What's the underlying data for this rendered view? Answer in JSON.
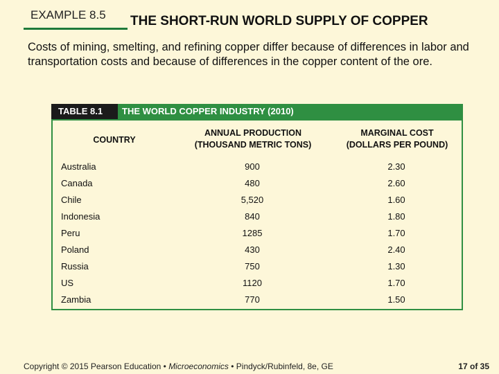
{
  "header": {
    "example_label": "EXAMPLE 8.5",
    "title": "THE SHORT-RUN WORLD SUPPLY OF COPPER"
  },
  "intro_text": "Costs of mining, smelting, and refining copper differ because of differences in labor and transportation costs and because of differences in the copper content of the ore.",
  "table": {
    "number": "TABLE 8.1",
    "title": "THE WORLD COPPER INDUSTRY (2010)",
    "columns": {
      "country": "COUNTRY",
      "production_line1": "ANNUAL PRODUCTION",
      "production_line2": "(THOUSAND METRIC TONS)",
      "cost_line1": "MARGINAL COST",
      "cost_line2": "(DOLLARS PER POUND)"
    },
    "rows": [
      {
        "country": "Australia",
        "production": "900",
        "cost": "2.30"
      },
      {
        "country": "Canada",
        "production": "480",
        "cost": "2.60"
      },
      {
        "country": "Chile",
        "production": "5,520",
        "cost": "1.60"
      },
      {
        "country": "Indonesia",
        "production": "840",
        "cost": "1.80"
      },
      {
        "country": "Peru",
        "production": "1285",
        "cost": "1.70"
      },
      {
        "country": "Poland",
        "production": "430",
        "cost": "2.40"
      },
      {
        "country": "Russia",
        "production": "750",
        "cost": "1.30"
      },
      {
        "country": "US",
        "production": "1120",
        "cost": "1.70"
      },
      {
        "country": "Zambia",
        "production": "770",
        "cost": "1.50"
      }
    ]
  },
  "footer": {
    "copyright": "Copyright © 2015 Pearson Education •",
    "book": "Microeconomics",
    "authors": "• Pindyck/Rubinfeld, 8e, GE",
    "page_current": "17",
    "page_of": "of 35"
  },
  "colors": {
    "background": "#fdf7d9",
    "accent_green": "#2f8f42",
    "table_number_bg": "#1b1b1b"
  }
}
